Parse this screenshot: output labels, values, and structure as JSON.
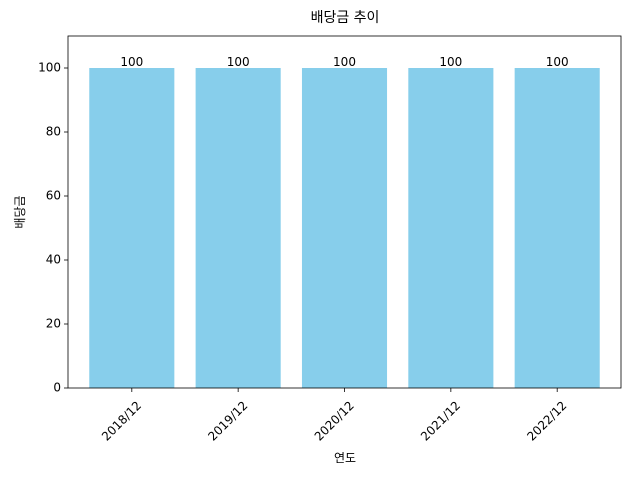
{
  "chart_data": {
    "type": "bar",
    "title": "배당금 추이",
    "x_label": "연도",
    "y_label": "배당금",
    "categories": [
      "2018/12",
      "2019/12",
      "2020/12",
      "2021/12",
      "2022/12"
    ],
    "values": [
      100,
      100,
      100,
      100,
      100
    ],
    "color": "#87ceeb",
    "ylim": [
      0,
      110
    ],
    "yticks": [
      0,
      20,
      40,
      60,
      80,
      100
    ],
    "grid": false
  }
}
